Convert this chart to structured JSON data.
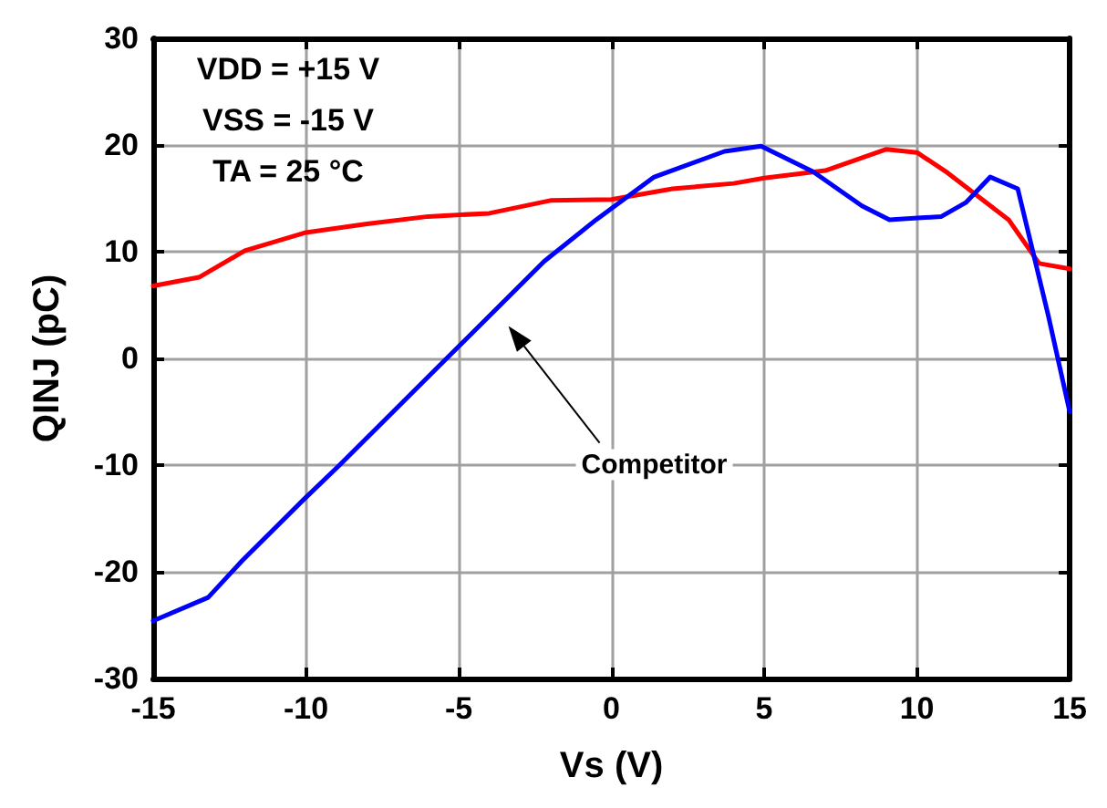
{
  "chart_data": {
    "type": "line",
    "xlabel": "Vs (V)",
    "ylabel": "QINJ (pC)",
    "annotations": [
      "VDD = +15 V",
      "VSS = -15 V",
      "TA = 25 °C"
    ],
    "xlim": [
      -15,
      15
    ],
    "xticks": [
      -15,
      -10,
      -5,
      0,
      5,
      10,
      15
    ],
    "ylim": [
      -30,
      30
    ],
    "yticks": [
      -30,
      -20,
      -10,
      0,
      10,
      20,
      30
    ],
    "grid": true,
    "legend": false,
    "marker": "none",
    "line_style": "solid",
    "series": [
      {
        "color": "#ff0000",
        "x": [
          -15,
          -13.5,
          -12,
          -10,
          -8,
          -6,
          -4,
          -2,
          0,
          2,
          4,
          5,
          7,
          8,
          9,
          10,
          11,
          13,
          14,
          15
        ],
        "values": [
          6.8,
          7.6,
          10.1,
          11.8,
          12.6,
          13.3,
          13.6,
          14.8,
          14.9,
          15.9,
          16.4,
          16.9,
          17.6,
          18.6,
          19.6,
          19.3,
          17.4,
          13,
          8.9,
          8.4
        ]
      },
      {
        "name": "Competitor",
        "color": "#0000ff",
        "x": [
          -15,
          -13.2,
          -12.1,
          -10.1,
          -8.9,
          -5.5,
          -2.2,
          -0.5,
          1.4,
          3.7,
          4.9,
          6.6,
          8.2,
          9.1,
          10.8,
          11.6,
          12.4,
          13.3,
          14.3,
          15
        ],
        "values": [
          -24.6,
          -22.4,
          -19,
          -13.3,
          -10,
          -0.3,
          9.1,
          13,
          17,
          19.4,
          19.9,
          17.5,
          14.3,
          13,
          13.3,
          14.6,
          17,
          15.9,
          4,
          -5
        ]
      }
    ]
  }
}
